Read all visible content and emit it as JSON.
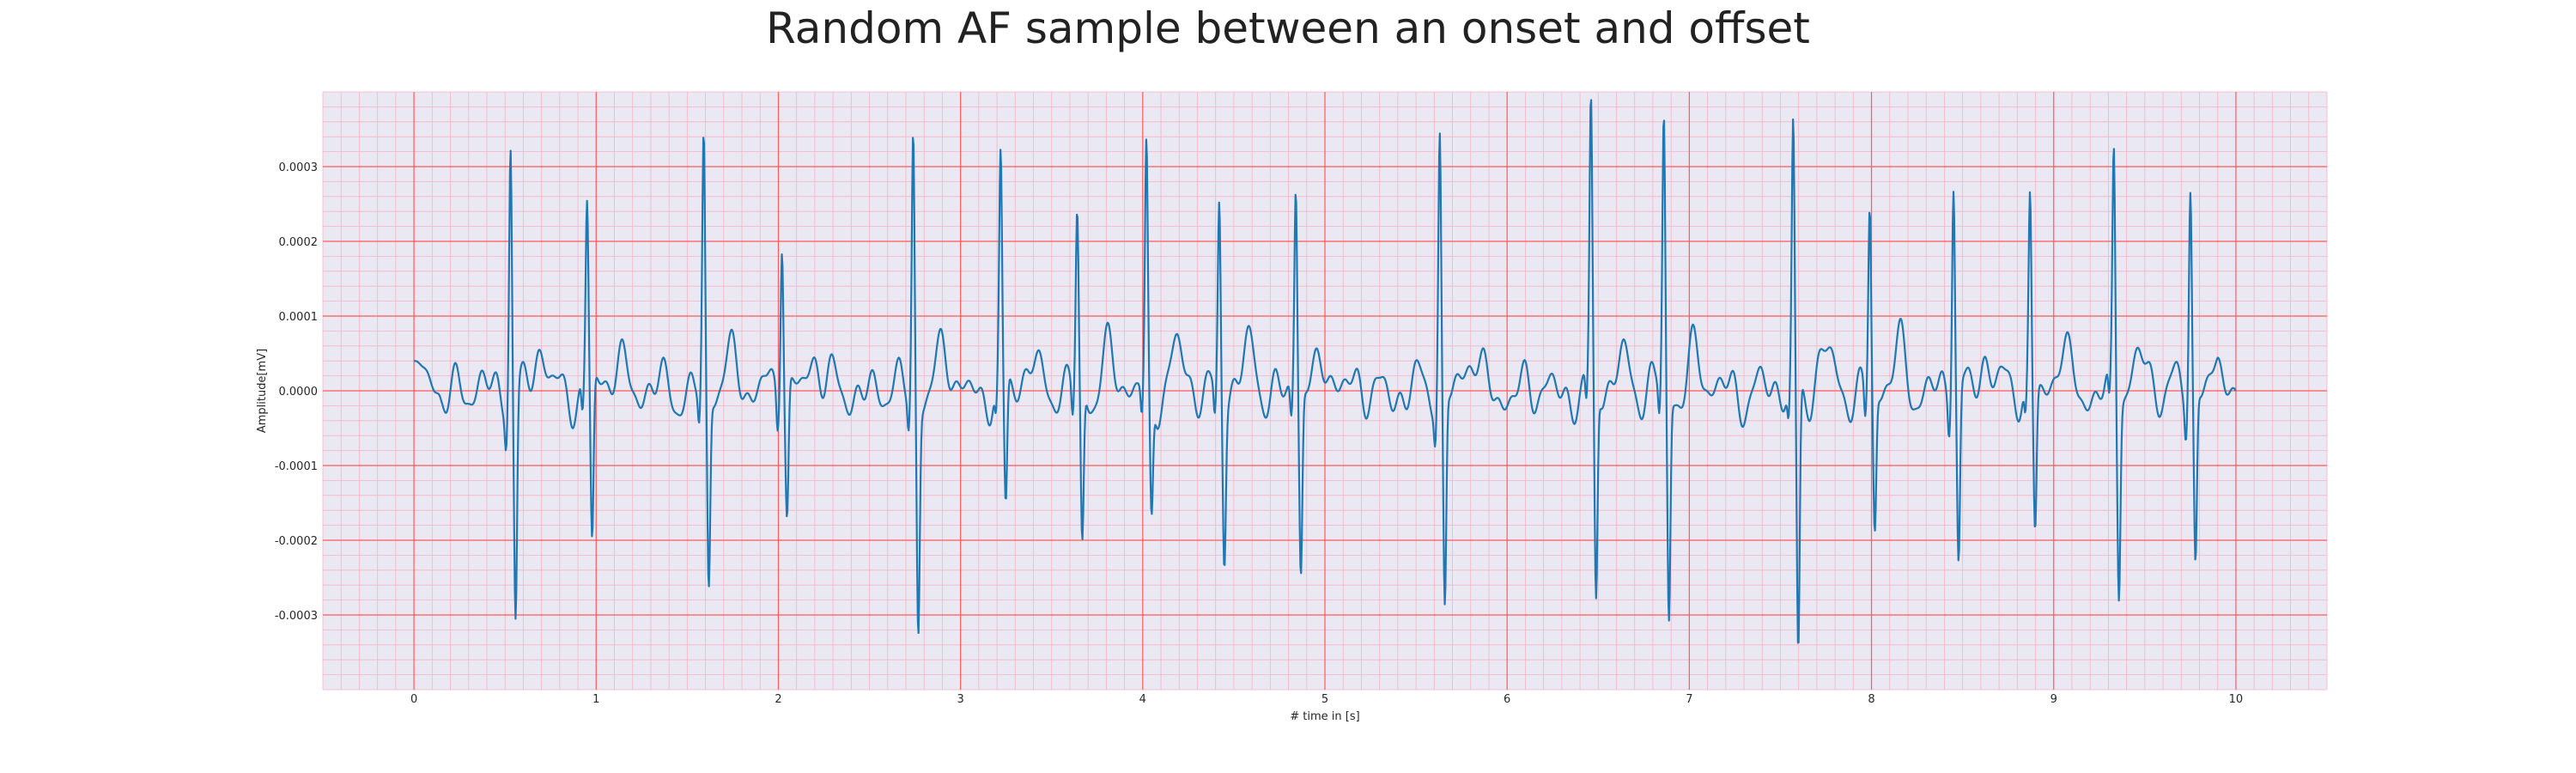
{
  "chart_data": {
    "type": "line",
    "title": "Random AF sample between an onset and offset",
    "xlabel": "# time in [s]",
    "ylabel": "Amplitude[mV]",
    "xlim": [
      -0.5,
      10.5
    ],
    "ylim": [
      -0.0004,
      0.0004
    ],
    "x_ticks": [
      0,
      1,
      2,
      3,
      4,
      5,
      6,
      7,
      8,
      9,
      10
    ],
    "y_ticks": [
      -0.0003,
      -0.0002,
      -0.0001,
      0.0,
      0.0001,
      0.0002,
      0.0003
    ],
    "y_tick_labels": [
      "-0.0003",
      "-0.0002",
      "-0.0001",
      "0.0000",
      "0.0001",
      "0.0002",
      "0.0003"
    ],
    "grid": true,
    "grid_major_color": "#ff5a5a",
    "grid_minor_color": "#f5b3c4",
    "background_color": "#eae8f2",
    "series": [
      {
        "color": "#1f77b4",
        "beats": [
          {
            "t": 0.53,
            "peak": 0.00035,
            "trough": -0.0003
          },
          {
            "t": 0.95,
            "peak": 0.000245,
            "trough": -0.00022
          },
          {
            "t": 1.59,
            "peak": 0.00033,
            "trough": -0.000265
          },
          {
            "t": 2.02,
            "peak": 0.000225,
            "trough": -0.00017
          },
          {
            "t": 2.74,
            "peak": 0.00035,
            "trough": -0.000305
          },
          {
            "t": 3.22,
            "peak": 0.00029,
            "trough": -0.000175
          },
          {
            "t": 3.64,
            "peak": 0.00023,
            "trough": -0.000215
          },
          {
            "t": 4.02,
            "peak": 0.000315,
            "trough": -0.00017
          },
          {
            "t": 4.42,
            "peak": 0.00026,
            "trough": -0.000205
          },
          {
            "t": 4.84,
            "peak": 0.00028,
            "trough": -0.00024
          },
          {
            "t": 5.63,
            "peak": 0.000345,
            "trough": -0.000295
          },
          {
            "t": 6.46,
            "peak": 0.000365,
            "trough": -0.00029
          },
          {
            "t": 6.86,
            "peak": 0.000355,
            "trough": -0.000305
          },
          {
            "t": 7.57,
            "peak": 0.000345,
            "trough": -0.000365
          },
          {
            "t": 7.99,
            "peak": 0.00025,
            "trough": -0.000185
          },
          {
            "t": 8.45,
            "peak": 0.00029,
            "trough": -0.000235
          },
          {
            "t": 8.87,
            "peak": 0.000255,
            "trough": -0.000185
          },
          {
            "t": 9.33,
            "peak": 0.00032,
            "trough": -0.000255
          },
          {
            "t": 9.75,
            "peak": 0.000275,
            "trough": -0.000235
          }
        ],
        "start": {
          "t": 0.0,
          "value": 4e-05
        },
        "end": {
          "t": 10.0,
          "value": 0.0
        }
      }
    ]
  }
}
